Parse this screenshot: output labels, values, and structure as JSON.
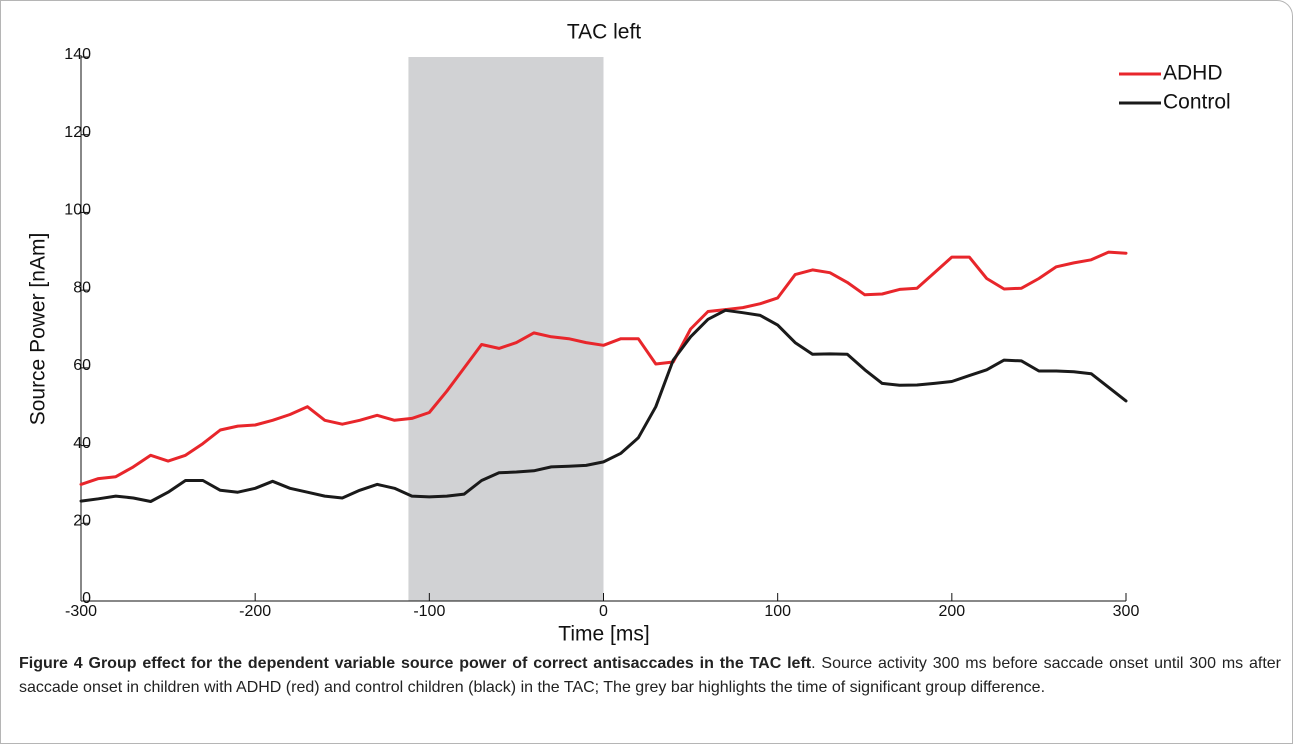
{
  "chart_data": {
    "type": "line",
    "title": "TAC left",
    "xlabel": "Time [ms]",
    "ylabel": "Source Power [nAm]",
    "x": [
      -300,
      -290,
      -280,
      -270,
      -260,
      -250,
      -240,
      -230,
      -220,
      -210,
      -200,
      -190,
      -180,
      -170,
      -160,
      -150,
      -140,
      -130,
      -120,
      -110,
      -100,
      -90,
      -80,
      -70,
      -60,
      -50,
      -40,
      -30,
      -20,
      -10,
      0,
      10,
      20,
      30,
      40,
      50,
      60,
      70,
      80,
      90,
      100,
      110,
      120,
      130,
      140,
      150,
      160,
      170,
      180,
      190,
      200,
      210,
      220,
      230,
      240,
      250,
      260,
      270,
      280,
      290,
      300
    ],
    "series": [
      {
        "name": "ADHD",
        "color": "#e8262b",
        "values": [
          30,
          31.5,
          32,
          34.5,
          37.5,
          36,
          37.5,
          40.5,
          44,
          45,
          45.3,
          46.5,
          48,
          50,
          46.5,
          45.5,
          46.5,
          47.8,
          46.5,
          47,
          48.5,
          54,
          60,
          66,
          65,
          66.5,
          69,
          68,
          67.5,
          66.5,
          65.8,
          67.5,
          67.5,
          61,
          61.5,
          70,
          74.5,
          75,
          75.5,
          76.5,
          78,
          84,
          85.2,
          84.5,
          82,
          78.8,
          79,
          80.2,
          80.5,
          84.5,
          88.5,
          88.5,
          83,
          80.3,
          80.5,
          83,
          86,
          87,
          87.8,
          89.8,
          89.5
        ]
      },
      {
        "name": "Control",
        "color": "#1a1a1a",
        "values": [
          25.7,
          26.3,
          27,
          26.5,
          25.6,
          28,
          31,
          31,
          28.5,
          28,
          29,
          30.8,
          29,
          28,
          27,
          26.5,
          28.5,
          30,
          29,
          27,
          26.8,
          27,
          27.5,
          31,
          33,
          33.2,
          33.5,
          34.5,
          34.7,
          34.9,
          35.8,
          38,
          42,
          50,
          62,
          68,
          72.5,
          74.8,
          74.2,
          73.5,
          71,
          66.5,
          63.5,
          63.6,
          63.5,
          59.5,
          56,
          55.5,
          55.6,
          56,
          56.5,
          58,
          59.5,
          62,
          61.8,
          59.2,
          59.2,
          59,
          58.5,
          55,
          51.5
        ]
      }
    ],
    "highlight": [
      -112,
      0
    ],
    "highlight_color": "#d1d2d4",
    "xlim": [
      -300,
      300
    ],
    "xticks": [
      -300,
      -200,
      -100,
      0,
      100,
      200,
      300
    ],
    "ylim": [
      0,
      140
    ],
    "yticks": [
      0,
      20,
      40,
      60,
      80,
      100,
      120,
      140
    ],
    "legend": "top-right"
  },
  "caption": {
    "label": "Figure 4",
    "title": "Group effect for the dependent variable source power of correct antisaccades in the TAC left",
    "text": ". Source activity 300 ms before saccade onset until 300 ms after saccade onset in children with ADHD (red) and control children (black) in the TAC; The grey bar highlights the time of significant group difference."
  }
}
